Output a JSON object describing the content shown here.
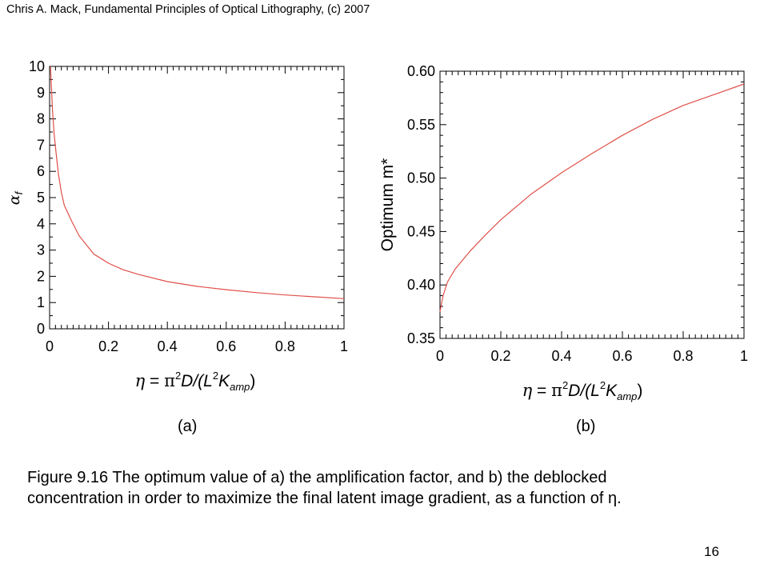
{
  "header": "Chris A. Mack, Fundamental Principles of Optical Lithography, (c) 2007",
  "panel_a_label": "(a)",
  "panel_b_label": "(b)",
  "caption_line1": "Figure 9.16  The optimum value of a) the amplification factor, and b) the deblocked",
  "caption_line2": "concentration in order to maximize the final latent image gradient, as a function of η.",
  "page_number": "16",
  "colors": {
    "curve": "#e0504a",
    "axis": "#000000"
  },
  "chart_data": [
    {
      "type": "line",
      "xlabel": "η = π²D/(L²K_amp)",
      "ylabel": "αf",
      "xlim": [
        0,
        1
      ],
      "ylim": [
        0,
        10
      ],
      "xticks": [
        "0",
        "0.2",
        "0.4",
        "0.6",
        "0.8",
        "1"
      ],
      "yticks": [
        "0",
        "1",
        "2",
        "3",
        "4",
        "5",
        "6",
        "7",
        "8",
        "9",
        "10"
      ],
      "grid": false,
      "series": [
        {
          "x": [
            0.003,
            0.005,
            0.01,
            0.015,
            0.02,
            0.03,
            0.04,
            0.05,
            0.075,
            0.1,
            0.15,
            0.2,
            0.25,
            0.3,
            0.4,
            0.5,
            0.6,
            0.7,
            0.8,
            0.9,
            1.0
          ],
          "values": [
            10,
            9.5,
            8.3,
            7.5,
            6.9,
            5.9,
            5.2,
            4.7,
            4.1,
            3.55,
            2.85,
            2.5,
            2.25,
            2.08,
            1.8,
            1.62,
            1.49,
            1.38,
            1.29,
            1.22,
            1.15
          ]
        }
      ]
    },
    {
      "type": "line",
      "xlabel": "η = π²D/(L²K_amp)",
      "ylabel": "Optimum m*",
      "xlim": [
        0,
        1
      ],
      "ylim": [
        0.35,
        0.6
      ],
      "xticks": [
        "0",
        "0.2",
        "0.4",
        "0.6",
        "0.8",
        "1"
      ],
      "yticks": [
        "0.35",
        "0.40",
        "0.45",
        "0.50",
        "0.55",
        "0.60"
      ],
      "grid": false,
      "series": [
        {
          "x": [
            0.0,
            0.01,
            0.025,
            0.05,
            0.1,
            0.15,
            0.2,
            0.3,
            0.4,
            0.5,
            0.6,
            0.7,
            0.8,
            0.9,
            1.0
          ],
          "values": [
            0.375,
            0.39,
            0.403,
            0.415,
            0.432,
            0.447,
            0.461,
            0.485,
            0.505,
            0.523,
            0.54,
            0.555,
            0.568,
            0.578,
            0.588
          ]
        }
      ]
    }
  ]
}
